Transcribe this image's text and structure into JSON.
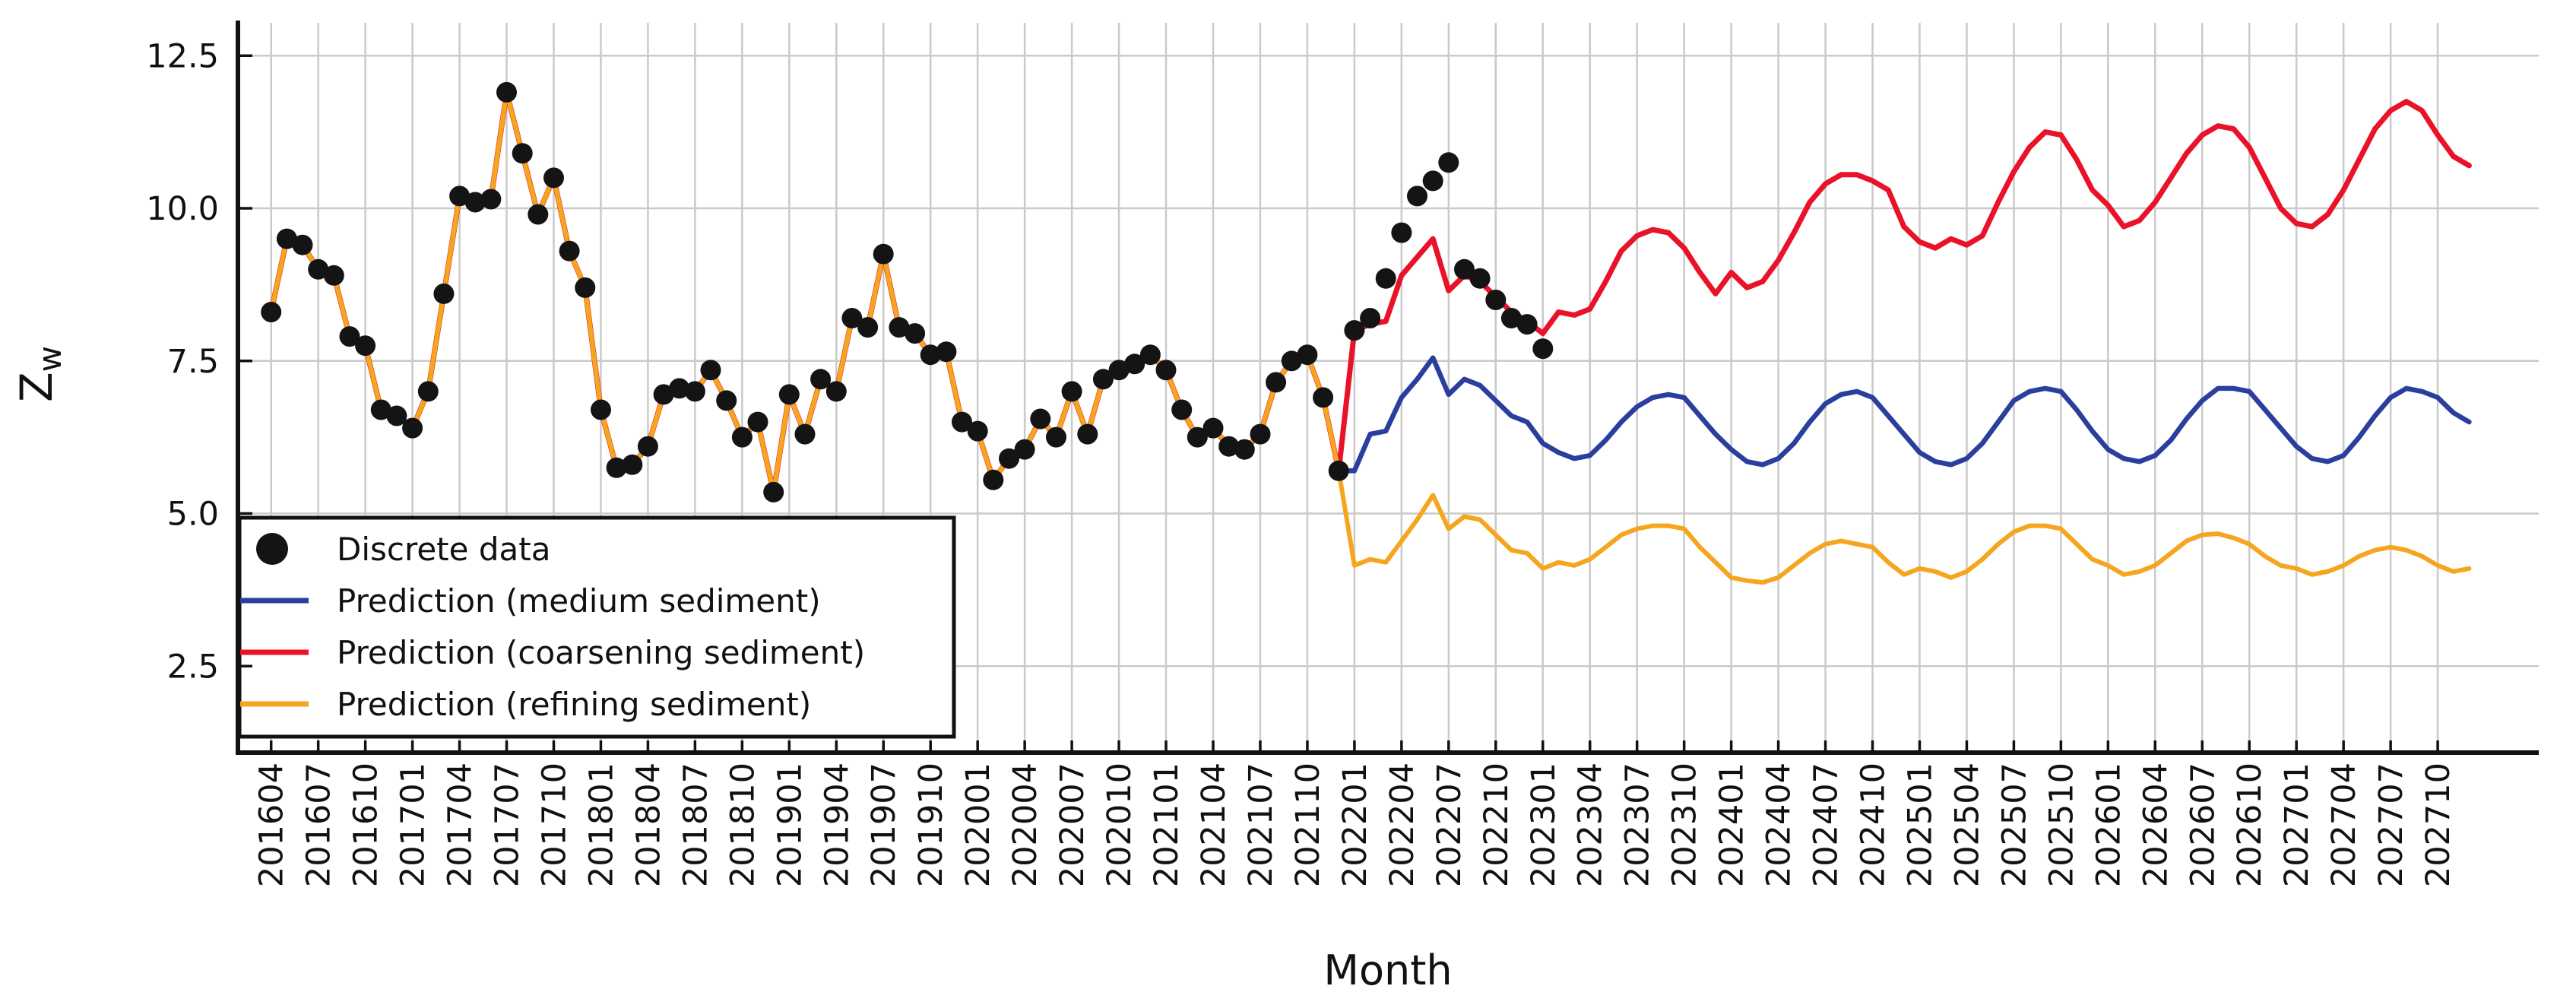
{
  "figure": {
    "background": "#ffffff"
  },
  "colors": {
    "axis": "#111111",
    "text": "#111111",
    "grid": "#cacaca",
    "legend_border": "#111111",
    "legend_bg": "#ffffff"
  },
  "axes": {
    "xlabel": "Month",
    "ylabel_main": "Z",
    "ylabel_sub": "w",
    "yticks": [
      "2.5",
      "5.0",
      "7.5",
      "10.0",
      "12.5"
    ],
    "ytick_values": [
      2.5,
      5.0,
      7.5,
      10.0,
      12.5
    ],
    "xticks": [
      "201604",
      "201607",
      "201610",
      "201701",
      "201704",
      "201707",
      "201710",
      "201801",
      "201804",
      "201807",
      "201810",
      "201901",
      "201904",
      "201907",
      "201910",
      "202001",
      "202004",
      "202007",
      "202010",
      "202101",
      "202104",
      "202107",
      "202110",
      "202201",
      "202204",
      "202207",
      "202210",
      "202301",
      "202304",
      "202307",
      "202310",
      "202401",
      "202404",
      "202407",
      "202410",
      "202501",
      "202504",
      "202507",
      "202510",
      "202601",
      "202604",
      "202607",
      "202610",
      "202701",
      "202704",
      "202707",
      "202710"
    ]
  },
  "legend": {
    "items": [
      {
        "label": "Discrete data",
        "marker": "circle",
        "color": "#141414"
      },
      {
        "label": "Prediction (medium sediment)",
        "marker": "line",
        "color": "#2a3f9d"
      },
      {
        "label": "Prediction (coarsening sediment)",
        "marker": "line",
        "color": "#e91229"
      },
      {
        "label": "Prediction (refining sediment)",
        "marker": "line",
        "color": "#f6a51f"
      }
    ]
  },
  "chart_data": {
    "type": "line",
    "x_start": "201604",
    "x_step": "1 month",
    "x_tick_interval_months": 3,
    "ylim": [
      1.1,
      13.1
    ],
    "ylabel": "Zw",
    "xlabel": "Month",
    "grid": "on",
    "legend_position": "lower left",
    "hindcast_note": "all three prediction lines overlap the discrete data from 201604 until 202112, then diverge",
    "scatter": {
      "name": "Discrete data",
      "color": "#141414",
      "start": "201604",
      "end": "202301",
      "values": [
        8.3,
        9.5,
        9.4,
        9.0,
        8.9,
        7.9,
        7.75,
        6.7,
        6.6,
        6.4,
        7.0,
        8.6,
        10.2,
        10.1,
        10.15,
        11.9,
        10.9,
        9.9,
        10.5,
        9.3,
        8.7,
        6.7,
        5.75,
        5.8,
        6.1,
        6.95,
        7.05,
        7.0,
        7.35,
        6.85,
        6.25,
        6.5,
        5.35,
        6.95,
        6.3,
        7.2,
        7.0,
        8.2,
        8.05,
        9.25,
        8.05,
        7.95,
        7.6,
        7.65,
        6.5,
        6.35,
        5.55,
        5.9,
        6.05,
        6.55,
        6.25,
        7.0,
        6.3,
        7.2,
        7.35,
        7.45,
        7.6,
        7.35,
        6.7,
        6.25,
        6.4,
        6.1,
        6.05,
        6.3,
        7.15,
        7.5,
        7.6,
        6.9,
        5.7,
        8.0,
        8.2,
        8.85,
        9.6,
        10.2,
        10.45,
        10.75,
        9.0,
        8.85,
        8.5,
        8.2,
        8.1,
        7.7
      ]
    },
    "series": [
      {
        "id": "medium",
        "name": "Prediction (medium sediment)",
        "color": "#2a3f9d",
        "width": 6.5,
        "start": "201604",
        "end": "202712",
        "values": [
          8.3,
          9.5,
          9.4,
          9.0,
          8.9,
          7.9,
          7.75,
          6.7,
          6.6,
          6.4,
          7.0,
          8.6,
          10.2,
          10.1,
          10.15,
          11.9,
          10.9,
          9.9,
          10.5,
          9.3,
          8.7,
          6.7,
          5.75,
          5.8,
          6.1,
          6.95,
          7.05,
          7.0,
          7.35,
          6.85,
          6.25,
          6.5,
          5.35,
          6.95,
          6.3,
          7.2,
          7.0,
          8.2,
          8.05,
          9.25,
          8.05,
          7.95,
          7.6,
          7.65,
          6.5,
          6.35,
          5.55,
          5.9,
          6.05,
          6.55,
          6.25,
          7.0,
          6.3,
          7.2,
          7.35,
          7.45,
          7.6,
          7.35,
          6.7,
          6.25,
          6.4,
          6.1,
          6.05,
          6.3,
          7.15,
          7.5,
          7.6,
          6.9,
          5.7,
          5.7,
          6.3,
          6.35,
          6.9,
          7.2,
          7.55,
          6.95,
          7.2,
          7.1,
          6.85,
          6.6,
          6.5,
          6.15,
          6.0,
          5.9,
          5.95,
          6.2,
          6.5,
          6.75,
          6.9,
          6.95,
          6.9,
          6.6,
          6.3,
          6.05,
          5.85,
          5.8,
          5.9,
          6.15,
          6.5,
          6.8,
          6.95,
          7.0,
          6.9,
          6.6,
          6.3,
          6.0,
          5.85,
          5.8,
          5.9,
          6.15,
          6.5,
          6.85,
          7.0,
          7.05,
          7.0,
          6.7,
          6.35,
          6.05,
          5.9,
          5.85,
          5.95,
          6.2,
          6.55,
          6.85,
          7.05,
          7.05,
          7.0,
          6.7,
          6.4,
          6.1,
          5.9,
          5.85,
          5.95,
          6.25,
          6.6,
          6.9,
          7.05,
          7.0,
          6.9,
          6.65,
          6.5
        ]
      },
      {
        "id": "coarsening",
        "name": "Prediction (coarsening sediment)",
        "color": "#e91229",
        "width": 7,
        "start": "201604",
        "end": "202712",
        "values": [
          8.3,
          9.5,
          9.4,
          9.0,
          8.9,
          7.9,
          7.75,
          6.7,
          6.6,
          6.4,
          7.0,
          8.6,
          10.2,
          10.1,
          10.15,
          11.9,
          10.9,
          9.9,
          10.5,
          9.3,
          8.7,
          6.7,
          5.75,
          5.8,
          6.1,
          6.95,
          7.05,
          7.0,
          7.35,
          6.85,
          6.25,
          6.5,
          5.35,
          6.95,
          6.3,
          7.2,
          7.0,
          8.2,
          8.05,
          9.25,
          8.05,
          7.95,
          7.6,
          7.65,
          6.5,
          6.35,
          5.55,
          5.9,
          6.05,
          6.55,
          6.25,
          7.0,
          6.3,
          7.2,
          7.35,
          7.45,
          7.6,
          7.35,
          6.7,
          6.25,
          6.4,
          6.1,
          6.05,
          6.3,
          7.15,
          7.5,
          7.6,
          6.9,
          5.7,
          8.0,
          8.1,
          8.15,
          8.9,
          9.2,
          9.5,
          8.65,
          8.9,
          8.8,
          8.55,
          8.3,
          8.15,
          7.95,
          8.3,
          8.25,
          8.35,
          8.8,
          9.3,
          9.55,
          9.65,
          9.6,
          9.35,
          8.95,
          8.6,
          8.95,
          8.7,
          8.8,
          9.15,
          9.6,
          10.1,
          10.4,
          10.55,
          10.55,
          10.45,
          10.3,
          9.7,
          9.45,
          9.35,
          9.5,
          9.4,
          9.55,
          10.1,
          10.6,
          11.0,
          11.25,
          11.2,
          10.8,
          10.3,
          10.05,
          9.7,
          9.8,
          10.1,
          10.5,
          10.9,
          11.2,
          11.35,
          11.3,
          11.0,
          10.5,
          10.0,
          9.75,
          9.7,
          9.9,
          10.3,
          10.8,
          11.3,
          11.6,
          11.75,
          11.6,
          11.2,
          10.85,
          10.7
        ]
      },
      {
        "id": "refining",
        "name": "Prediction (refining sediment)",
        "color": "#f6a51f",
        "width": 6,
        "start": "201604",
        "end": "202712",
        "values": [
          8.3,
          9.5,
          9.4,
          9.0,
          8.9,
          7.9,
          7.75,
          6.7,
          6.6,
          6.4,
          7.0,
          8.6,
          10.2,
          10.1,
          10.15,
          11.9,
          10.9,
          9.9,
          10.5,
          9.3,
          8.7,
          6.7,
          5.75,
          5.8,
          6.1,
          6.95,
          7.05,
          7.0,
          7.35,
          6.85,
          6.25,
          6.5,
          5.35,
          6.95,
          6.3,
          7.2,
          7.0,
          8.2,
          8.05,
          9.25,
          8.05,
          7.95,
          7.6,
          7.65,
          6.5,
          6.35,
          5.55,
          5.9,
          6.05,
          6.55,
          6.25,
          7.0,
          6.3,
          7.2,
          7.35,
          7.45,
          7.6,
          7.35,
          6.7,
          6.25,
          6.4,
          6.1,
          6.05,
          6.3,
          7.15,
          7.5,
          7.6,
          6.9,
          5.7,
          4.15,
          4.25,
          4.2,
          4.55,
          4.9,
          5.3,
          4.75,
          4.95,
          4.9,
          4.65,
          4.4,
          4.35,
          4.1,
          4.2,
          4.15,
          4.25,
          4.45,
          4.65,
          4.75,
          4.8,
          4.8,
          4.75,
          4.45,
          4.2,
          3.95,
          3.9,
          3.87,
          3.95,
          4.15,
          4.35,
          4.5,
          4.55,
          4.5,
          4.45,
          4.2,
          4.0,
          4.1,
          4.05,
          3.95,
          4.05,
          4.25,
          4.5,
          4.7,
          4.8,
          4.8,
          4.75,
          4.5,
          4.25,
          4.15,
          4.0,
          4.05,
          4.15,
          4.35,
          4.55,
          4.65,
          4.67,
          4.6,
          4.5,
          4.3,
          4.15,
          4.1,
          4.0,
          4.05,
          4.15,
          4.3,
          4.4,
          4.45,
          4.4,
          4.3,
          4.15,
          4.05,
          4.1
        ]
      }
    ]
  }
}
